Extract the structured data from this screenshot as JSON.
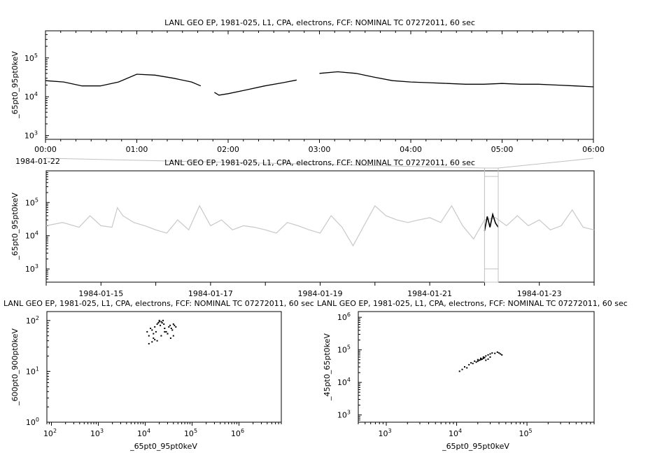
{
  "chart_data": [
    {
      "type": "line",
      "title": "LANL GEO EP, 1981-025, L1, CPA, electrons, FCF: NOMINAL TC 07272011, 60 sec",
      "xlabel": "",
      "ylabel": "_65pt0_95pt0keV",
      "yscale": "log",
      "ylim": [
        800,
        500000
      ],
      "x_tick_labels": [
        "00:00",
        "01:00",
        "02:00",
        "03:00",
        "04:00",
        "05:00",
        "06:00"
      ],
      "x_sub_label": "1984-01-22",
      "x_hours": [
        0,
        0.2,
        0.4,
        0.6,
        0.8,
        1.0,
        1.2,
        1.4,
        1.6,
        1.7,
        1.75,
        1.85,
        1.9,
        2.0,
        2.2,
        2.4,
        2.6,
        2.75,
        2.8,
        3.0,
        3.2,
        3.4,
        3.6,
        3.8,
        4.0,
        4.2,
        4.4,
        4.6,
        4.8,
        5.0,
        5.2,
        5.4,
        5.6,
        5.8,
        6.0
      ],
      "values": [
        26000,
        24000,
        19000,
        19000,
        24000,
        38000,
        36000,
        30000,
        24000,
        19000,
        null,
        13000,
        11000,
        12000,
        15000,
        19000,
        23000,
        27000,
        null,
        40000,
        44000,
        40000,
        32000,
        26000,
        24000,
        23000,
        22000,
        21000,
        21000,
        22000,
        21000,
        21000,
        20000,
        19000,
        18000
      ],
      "grid": false
    },
    {
      "type": "line",
      "title": "LANL GEO EP, 1981-025, L1, CPA, electrons, FCF: NOMINAL TC 07272011, 60 sec",
      "xlabel": "",
      "ylabel": "_65pt0_95pt0keV",
      "yscale": "log",
      "xlim": [
        "1984-01-14",
        "1984-01-24"
      ],
      "ylim": [
        400,
        900000
      ],
      "x_tick_labels": [
        "1984-01-15",
        "1984-01-17",
        "1984-01-19",
        "1984-01-21",
        "1984-01-23"
      ],
      "highlight_range": [
        "1984-01-22 00:00",
        "1984-01-22 06:00"
      ],
      "series": [
        {
          "color": "#c8c8c8",
          "x_days": [
            0,
            0.3,
            0.6,
            0.8,
            1.0,
            1.2,
            1.3,
            1.4,
            1.6,
            1.8,
            2.0,
            2.2,
            2.4,
            2.6,
            2.8,
            3.0,
            3.2,
            3.4,
            3.6,
            3.8,
            4.0,
            4.2,
            4.4,
            4.6,
            4.8,
            5.0,
            5.2,
            5.4,
            5.6,
            5.8,
            6.0,
            6.2,
            6.4,
            6.6,
            6.8,
            7.0,
            7.2,
            7.4,
            7.6,
            7.8,
            8.0,
            8.2,
            8.4,
            8.6,
            8.8,
            9.0,
            9.2,
            9.4,
            9.6,
            9.8,
            10.0
          ],
          "values": [
            20000,
            25000,
            18000,
            40000,
            20000,
            18000,
            70000,
            40000,
            25000,
            20000,
            15000,
            12000,
            30000,
            15000,
            80000,
            20000,
            30000,
            15000,
            20000,
            18000,
            15000,
            12000,
            25000,
            20000,
            15000,
            12000,
            40000,
            18000,
            5000,
            20000,
            80000,
            40000,
            30000,
            25000,
            30000,
            35000,
            25000,
            80000,
            20000,
            8000,
            30000,
            35000,
            20000,
            40000,
            20000,
            30000,
            15000,
            20000,
            60000,
            18000,
            15000
          ]
        },
        {
          "color": "#000000",
          "x_days": [
            8.0,
            8.05,
            8.1,
            8.15,
            8.2,
            8.25
          ],
          "values": [
            14000,
            38000,
            18000,
            44000,
            24000,
            18000
          ]
        }
      ],
      "grid": false
    },
    {
      "type": "scatter",
      "title": "LANL GEO EP, 1981-025, L1, CPA, electrons, FCF: NOMINAL TC 07272011, 60 sec",
      "xlabel": "_65pt0_95pt0keV",
      "ylabel": "_600pt0_900pt0keV",
      "xscale": "log",
      "yscale": "log",
      "xlim": [
        80,
        8000000
      ],
      "ylim": [
        1,
        150
      ],
      "x_tick_exponents": [
        "2",
        "3",
        "4",
        "5",
        "6"
      ],
      "y_tick_exponents": [
        "0",
        "1",
        "2"
      ],
      "x": [
        11000,
        12000,
        13000,
        14000,
        15000,
        16000,
        17000,
        18000,
        19000,
        20000,
        20000,
        21000,
        22000,
        23000,
        24000,
        25000,
        26000,
        28000,
        30000,
        32000,
        34000,
        36000,
        38000,
        40000,
        42000,
        45000,
        15000,
        18000,
        22000,
        26000,
        30000,
        35000,
        40000,
        12000,
        14000,
        16000
      ],
      "y": [
        60,
        50,
        70,
        65,
        55,
        75,
        60,
        85,
        90,
        95,
        100,
        80,
        95,
        90,
        100,
        85,
        70,
        60,
        55,
        75,
        80,
        70,
        65,
        85,
        80,
        75,
        45,
        40,
        50,
        60,
        55,
        45,
        50,
        35,
        38,
        42
      ],
      "grid": false
    },
    {
      "type": "scatter",
      "title": "LANL GEO EP, 1981-025, L1, CPA, electrons, FCF: NOMINAL TC 07272011, 60 sec",
      "xlabel": "_65pt0_95pt0keV",
      "ylabel": "_45pt0_65pt0keV",
      "xscale": "log",
      "yscale": "log",
      "xlim": [
        400,
        900000
      ],
      "ylim": [
        600,
        1500000
      ],
      "x_tick_exponents": [
        "3",
        "4",
        "5"
      ],
      "y_tick_exponents": [
        "3",
        "4",
        "5",
        "6"
      ],
      "x": [
        11000,
        12000,
        13000,
        14000,
        15000,
        16000,
        17000,
        18000,
        19000,
        20000,
        21000,
        22000,
        23000,
        24000,
        25000,
        26000,
        28000,
        30000,
        32000,
        35000,
        38000,
        40000,
        42000,
        44000,
        20000,
        22000,
        24000,
        26000,
        28000,
        30000
      ],
      "y": [
        22000,
        25000,
        30000,
        28000,
        35000,
        40000,
        38000,
        45000,
        42000,
        50000,
        48000,
        55000,
        52000,
        60000,
        58000,
        65000,
        70000,
        75000,
        80000,
        78000,
        85000,
        80000,
        75000,
        70000,
        45000,
        50000,
        55000,
        48000,
        52000,
        60000
      ],
      "grid": false
    }
  ]
}
